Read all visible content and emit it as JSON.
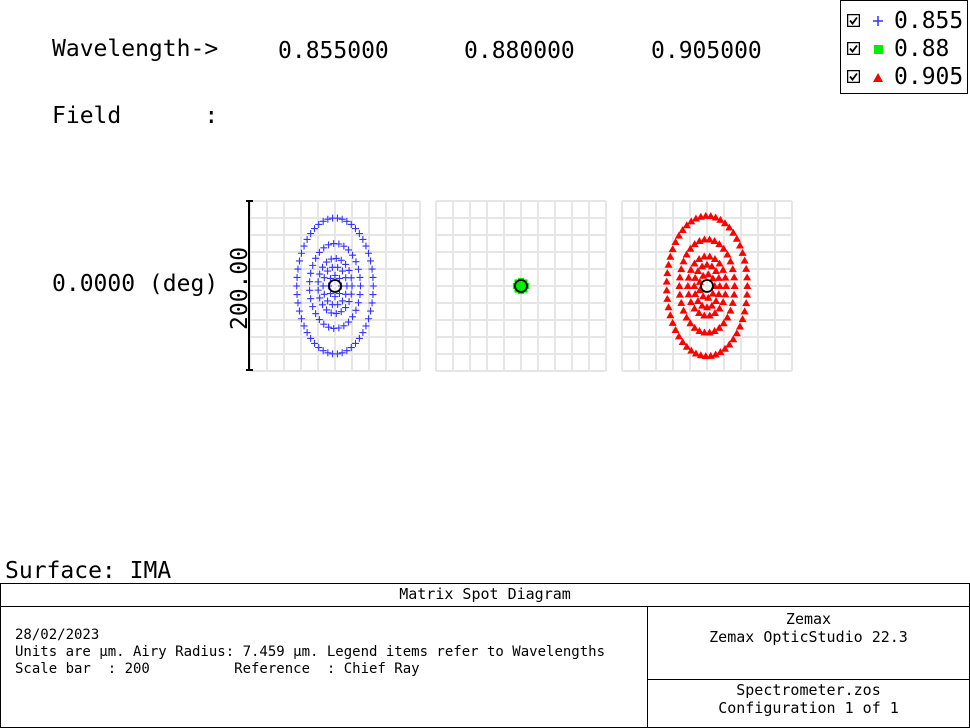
{
  "header": {
    "wavelength_label": "Wavelength->",
    "wavelengths": [
      "0.855000",
      "0.880000",
      "0.905000"
    ],
    "field_label": "Field      :",
    "field_value": "0.0000 (deg)",
    "scale_label": "200.00"
  },
  "legend": {
    "items": [
      {
        "label": "0.855",
        "marker": "plus",
        "color": "#3333ff",
        "checked": true
      },
      {
        "label": "0.88",
        "marker": "square",
        "color": "#00ee00",
        "checked": true
      },
      {
        "label": "0.905",
        "marker": "triangle",
        "color": "#ff0000",
        "checked": true
      }
    ]
  },
  "surface_label": "Surface: IMA",
  "footer": {
    "title": "Matrix Spot Diagram",
    "date": "28/02/2023",
    "units_line": "Units are µm. Airy Radius: 7.459 µm. Legend items refer to Wavelengths",
    "scale_line": "Scale bar  : 200          Reference  : Chief Ray",
    "company": "Zemax",
    "product": "Zemax OpticStudio 22.3",
    "file": "Spectrometer.zos",
    "config": "Configuration 1 of 1"
  },
  "chart_data": {
    "type": "scatter",
    "title": "Matrix Spot Diagram",
    "units": "µm",
    "scale_bar": 200,
    "airy_radius": 7.459,
    "reference": "Chief Ray",
    "field": "0.0000 (deg)",
    "grid": true,
    "panel_half_width": 200,
    "series": [
      {
        "name": "0.855",
        "marker": "plus",
        "color": "#3333ff",
        "rings": [
          {
            "rx": 90,
            "ry": 160
          },
          {
            "rx": 60,
            "ry": 100
          },
          {
            "rx": 40,
            "ry": 65
          },
          {
            "rx": 28,
            "ry": 45
          },
          {
            "rx": 15,
            "ry": 25
          }
        ]
      },
      {
        "name": "0.88",
        "marker": "square",
        "color": "#00ee00",
        "rings": [
          {
            "rx": 12,
            "ry": 12
          },
          {
            "rx": 7,
            "ry": 7
          },
          {
            "rx": 3,
            "ry": 3
          }
        ]
      },
      {
        "name": "0.905",
        "marker": "triangle",
        "color": "#ff0000",
        "rings": [
          {
            "rx": 95,
            "ry": 165
          },
          {
            "rx": 65,
            "ry": 110
          },
          {
            "rx": 45,
            "ry": 70
          },
          {
            "rx": 30,
            "ry": 50
          },
          {
            "rx": 18,
            "ry": 28
          }
        ]
      }
    ]
  }
}
